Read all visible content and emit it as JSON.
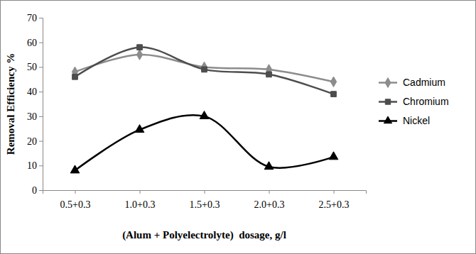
{
  "chart_data": {
    "type": "line",
    "x_label": "(Alum + Polyelectrolyte)  dosage, g/l",
    "y_label": "Removal Efficiency %",
    "categories": [
      "0.5+0.3",
      "1.0+0.3",
      "1.5+0.3",
      "2.0+0.3",
      "2.5+0.3"
    ],
    "series": [
      {
        "name": "Cadmium",
        "color": "#8c8c8c",
        "marker": "diamond",
        "values": [
          48,
          55,
          50,
          49,
          44
        ]
      },
      {
        "name": "Chromium",
        "color": "#4d4d4d",
        "marker": "square",
        "values": [
          46,
          58,
          49,
          47,
          39
        ]
      },
      {
        "name": "Nickel",
        "color": "#000000",
        "marker": "triangle",
        "values": [
          8,
          24.5,
          30,
          9.5,
          13.5
        ]
      }
    ],
    "ylim": [
      0,
      70
    ],
    "yticks": [
      0,
      10,
      20,
      30,
      40,
      50,
      60,
      70
    ],
    "grid": false,
    "legend": "right"
  }
}
